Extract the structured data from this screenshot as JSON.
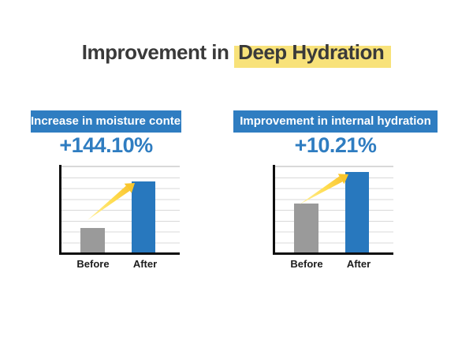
{
  "title": {
    "prefix": "Improvement in ",
    "highlight": "Deep Hydration"
  },
  "panels": [
    {
      "banner": "Increase in moisture content",
      "percent": "+144.10%"
    },
    {
      "banner": "Improvement in internal hydration",
      "percent": "+10.21%"
    }
  ],
  "colors": {
    "blue": "#2F7DC1",
    "bar_blue": "#2878BE",
    "bar_gray": "#9A9A9A",
    "highlight_yellow": "#F8E27A",
    "arrow_yellow_tail": "#FFF0A0",
    "arrow_yellow_head": "#F7BD2A",
    "title_text": "#3a3a3a",
    "gridline": "#d9d9d9"
  },
  "chart_data": [
    {
      "type": "bar",
      "title": "Increase in moisture content",
      "categories": [
        "Before",
        "After"
      ],
      "values_relative": [
        100,
        244.1
      ],
      "increase_label": "+144.10%",
      "bar_colors": [
        "#9A9A9A",
        "#2878BE"
      ],
      "bar_heights_pct_as_drawn": {
        "before": 28,
        "after": 81
      },
      "grid": true,
      "gridline_count": 8,
      "annotation": "yellow growth arrow from Before toward top of After bar",
      "xlabel": "",
      "ylabel": ""
    },
    {
      "type": "bar",
      "title": "Improvement in internal hydration",
      "categories": [
        "Before",
        "After"
      ],
      "values_relative": [
        100,
        110.21
      ],
      "increase_label": "+10.21%",
      "bar_colors": [
        "#9A9A9A",
        "#2878BE"
      ],
      "bar_heights_pct_as_drawn": {
        "before": 56,
        "after": 92
      },
      "grid": true,
      "gridline_count": 8,
      "annotation": "yellow growth arrow from top of Before bar toward top of After bar",
      "xlabel": "",
      "ylabel": ""
    }
  ]
}
